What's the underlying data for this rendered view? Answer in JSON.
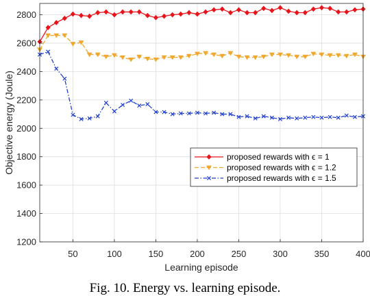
{
  "caption": "Fig. 10. Energy vs. learning episode.",
  "chart_data": {
    "type": "line",
    "xlabel": "Learning episode",
    "ylabel": "Objective energy (Joule)",
    "xlim": [
      10,
      400
    ],
    "ylim": [
      1200,
      2880
    ],
    "xticks": [
      50,
      100,
      150,
      200,
      250,
      300,
      350,
      400
    ],
    "yticks": [
      1200,
      1400,
      1600,
      1800,
      2000,
      2200,
      2400,
      2600,
      2800
    ],
    "grid": true,
    "legend_position": "center-right",
    "x": [
      10,
      20,
      30,
      40,
      50,
      60,
      70,
      80,
      90,
      100,
      110,
      120,
      130,
      140,
      150,
      160,
      170,
      180,
      190,
      200,
      210,
      220,
      230,
      240,
      250,
      260,
      270,
      280,
      290,
      300,
      310,
      320,
      330,
      340,
      350,
      360,
      370,
      380,
      390,
      400
    ],
    "series": [
      {
        "name": "proposed rewards with ϵ = 1",
        "color": "#e8141a",
        "marker": "diamond",
        "dash": "solid",
        "values": [
          2610,
          2710,
          2745,
          2775,
          2805,
          2795,
          2790,
          2815,
          2820,
          2800,
          2820,
          2820,
          2820,
          2795,
          2780,
          2790,
          2800,
          2805,
          2815,
          2805,
          2820,
          2835,
          2840,
          2815,
          2835,
          2815,
          2815,
          2845,
          2830,
          2850,
          2825,
          2815,
          2815,
          2840,
          2850,
          2845,
          2820,
          2820,
          2835,
          2840
        ]
      },
      {
        "name": "proposed rewards with ϵ = 1.2",
        "color": "#f0a830",
        "marker": "triangle-down",
        "dash": "dashed",
        "values": [
          2555,
          2655,
          2655,
          2655,
          2595,
          2605,
          2520,
          2520,
          2505,
          2515,
          2500,
          2485,
          2505,
          2490,
          2485,
          2500,
          2500,
          2500,
          2510,
          2525,
          2530,
          2520,
          2510,
          2530,
          2505,
          2500,
          2500,
          2505,
          2520,
          2520,
          2515,
          2505,
          2505,
          2525,
          2520,
          2515,
          2515,
          2510,
          2520,
          2505
        ]
      },
      {
        "name": "proposed rewards with ϵ = 1.5",
        "color": "#1f3fcf",
        "marker": "x",
        "dash": "dashdot",
        "values": [
          2520,
          2540,
          2420,
          2350,
          2095,
          2065,
          2070,
          2085,
          2180,
          2120,
          2165,
          2195,
          2160,
          2170,
          2115,
          2115,
          2100,
          2105,
          2105,
          2110,
          2105,
          2110,
          2100,
          2100,
          2080,
          2085,
          2070,
          2085,
          2075,
          2065,
          2075,
          2070,
          2075,
          2080,
          2075,
          2080,
          2075,
          2090,
          2080,
          2085
        ]
      }
    ]
  }
}
